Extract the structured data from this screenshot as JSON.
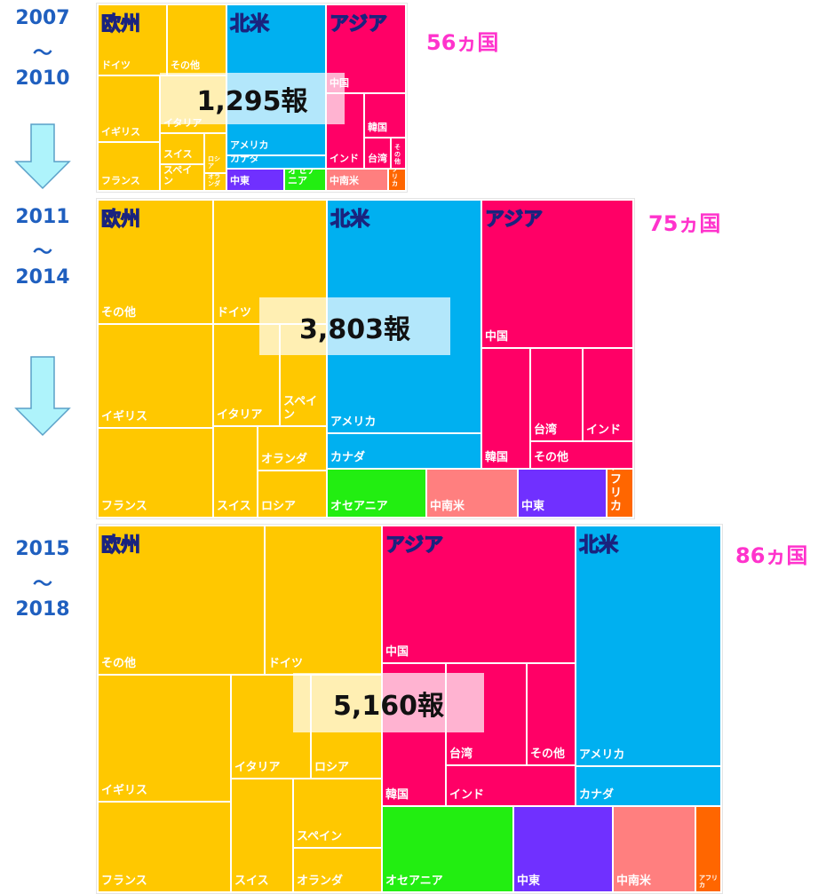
{
  "periods": [
    {
      "from": "2007",
      "tilde": "～",
      "to": "2010",
      "total": "1,295報",
      "countries": "56ヵ国",
      "regions": [
        {
          "name": "欧州",
          "color": "#ffc800",
          "cells": [
            "ドイツ",
            "その他",
            "イギリス",
            "イタリア",
            "フランス",
            "スイス",
            "ロシア",
            "スペイン",
            "オランダ"
          ]
        },
        {
          "name": "北米",
          "color": "#00b0f0",
          "cells": [
            "アメリカ",
            "カナダ"
          ]
        },
        {
          "name": "アジア",
          "color": "#ff0066",
          "cells": [
            "中国",
            "韓国",
            "インド",
            "台湾",
            "その他"
          ]
        },
        {
          "name": "中東",
          "color": "#7030ff"
        },
        {
          "name": "オセアニア",
          "color": "#22ee11"
        },
        {
          "name": "中南米",
          "color": "#ff7f7f"
        },
        {
          "name": "アフリカ",
          "color": "#ff6600"
        }
      ]
    },
    {
      "from": "2011",
      "tilde": "～",
      "to": "2014",
      "total": "3,803報",
      "countries": "75ヵ国",
      "regions": [
        {
          "name": "欧州",
          "color": "#ffc800",
          "cells": [
            "その他",
            "ドイツ",
            "イギリス",
            "フランス",
            "イタリア",
            "スペイン",
            "スイス",
            "オランダ",
            "ロシア"
          ]
        },
        {
          "name": "北米",
          "color": "#00b0f0",
          "cells": [
            "アメリカ",
            "カナダ"
          ]
        },
        {
          "name": "アジア",
          "color": "#ff0066",
          "cells": [
            "中国",
            "韓国",
            "台湾",
            "インド",
            "その他"
          ]
        },
        {
          "name": "オセアニア",
          "color": "#22ee11"
        },
        {
          "name": "中南米",
          "color": "#ff7f7f"
        },
        {
          "name": "中東",
          "color": "#7030ff"
        },
        {
          "name": "アフリカ",
          "color": "#ff6600"
        }
      ]
    },
    {
      "from": "2015",
      "tilde": "～",
      "to": "2018",
      "total": "5,160報",
      "countries": "86ヵ国",
      "regions": [
        {
          "name": "欧州",
          "color": "#ffc800",
          "cells": [
            "その他",
            "ドイツ",
            "イギリス",
            "フランス",
            "イタリア",
            "ロシア",
            "スペイン",
            "スイス",
            "オランダ"
          ]
        },
        {
          "name": "アジア",
          "color": "#ff0066",
          "cells": [
            "中国",
            "韓国",
            "台湾",
            "その他",
            "インド"
          ]
        },
        {
          "name": "北米",
          "color": "#00b0f0",
          "cells": [
            "アメリカ",
            "カナダ"
          ]
        },
        {
          "name": "オセアニア",
          "color": "#22ee11"
        },
        {
          "name": "中東",
          "color": "#7030ff"
        },
        {
          "name": "中南米",
          "color": "#ff7f7f"
        },
        {
          "name": "アフリカ",
          "color": "#ff6600"
        }
      ]
    }
  ]
}
